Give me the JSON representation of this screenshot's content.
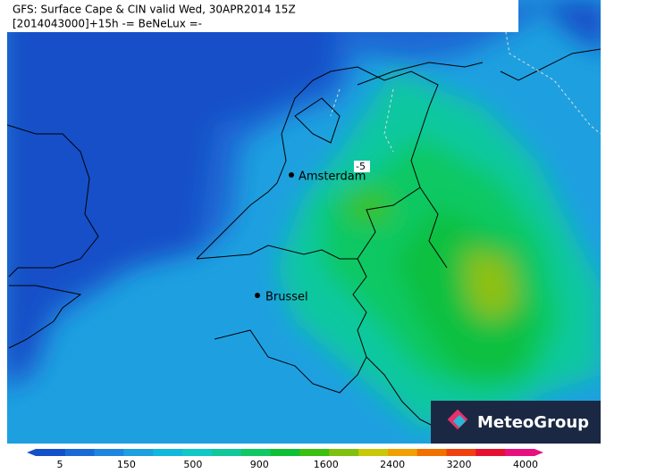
{
  "header": {
    "line1": "GFS: Surface Cape & CIN valid Wed, 30APR2014 15Z",
    "line2": "[2014043000]+15h -= BeNeLux =-"
  },
  "cities": [
    {
      "label": "Amsterdam"
    },
    {
      "label": "Brussel"
    }
  ],
  "contour_label": "-5",
  "logo": {
    "text": "MeteoGroup"
  },
  "legend": {
    "colors": [
      "#1450c8",
      "#1a6ad6",
      "#1e86de",
      "#1ea0e0",
      "#12b8dc",
      "#10c8c8",
      "#10c89a",
      "#10c864",
      "#10c034",
      "#3cc010",
      "#80c010",
      "#c8c808",
      "#f0a000",
      "#f07000",
      "#f04010",
      "#e81030",
      "#e81080"
    ],
    "ticks": [
      5,
      150,
      500,
      900,
      1600,
      2400,
      3200,
      4000
    ]
  }
}
